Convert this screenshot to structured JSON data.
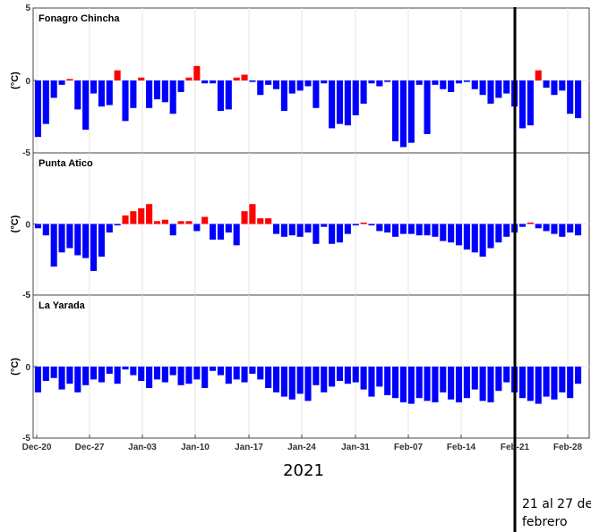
{
  "chart_data": [
    {
      "type": "bar",
      "title": "Fonagro Chincha",
      "ylabel": "(°C)",
      "ylim": [
        -5,
        5
      ],
      "y_ticks": [
        "5",
        "0",
        "-5"
      ],
      "values": [
        -3.9,
        -3.0,
        -1.2,
        -0.3,
        0.1,
        -2.0,
        -3.4,
        -0.9,
        -1.8,
        -1.7,
        0.7,
        -2.8,
        -1.9,
        0.2,
        -1.9,
        -1.3,
        -1.5,
        -2.3,
        -0.8,
        0.2,
        1.0,
        -0.2,
        -0.2,
        -2.1,
        -2.0,
        0.2,
        0.4,
        -0.1,
        -1.0,
        -0.3,
        -0.6,
        -2.1,
        -0.9,
        -0.7,
        -0.4,
        -1.9,
        -0.2,
        -3.3,
        -3.0,
        -3.1,
        -2.4,
        -1.6,
        -0.2,
        -0.4,
        -0.1,
        -4.2,
        -4.6,
        -4.3,
        -0.3,
        -3.7,
        -0.3,
        -0.6,
        -0.8,
        -0.2,
        -0.1,
        -0.6,
        -1.0,
        -1.6,
        -1.2,
        -0.9,
        -1.8,
        -3.3,
        -3.1,
        0.7,
        -0.5,
        -1.0,
        -0.7,
        -2.3,
        -2.6
      ],
      "colors": {
        "positive": "#ff0000",
        "negative": "#0000ff"
      }
    },
    {
      "type": "bar",
      "title": "Punta Atico",
      "ylabel": "(°C)",
      "ylim": [
        -5,
        5
      ],
      "y_ticks": [
        "0",
        "-5"
      ],
      "values": [
        -0.3,
        -0.8,
        -3.0,
        -2.0,
        -1.7,
        -2.2,
        -2.4,
        -3.3,
        -2.3,
        -0.6,
        -0.1,
        0.6,
        0.9,
        1.1,
        1.4,
        0.2,
        0.3,
        -0.8,
        0.2,
        0.2,
        -0.5,
        0.5,
        -1.1,
        -1.1,
        -0.6,
        -1.5,
        0.9,
        1.4,
        0.4,
        0.4,
        -0.7,
        -0.9,
        -0.8,
        -0.9,
        -0.6,
        -1.4,
        -0.2,
        -1.4,
        -1.3,
        -0.7,
        -0.1,
        0.1,
        -0.1,
        -0.5,
        -0.6,
        -0.9,
        -0.7,
        -0.7,
        -0.8,
        -0.8,
        -0.9,
        -1.2,
        -1.3,
        -1.5,
        -1.8,
        -2.0,
        -2.3,
        -1.7,
        -1.3,
        -0.9,
        -0.6,
        -0.2,
        0.1,
        -0.3,
        -0.5,
        -0.7,
        -0.9,
        -0.6,
        -0.8
      ],
      "colors": {
        "positive": "#ff0000",
        "negative": "#0000ff"
      }
    },
    {
      "type": "bar",
      "title": "La Yarada",
      "ylabel": "(°C)",
      "ylim": [
        -5,
        5
      ],
      "y_ticks": [
        "5",
        "0",
        "-5"
      ],
      "x_tick_labels": [
        "Dec-20",
        "Dec-27",
        "Jan-03",
        "Jan-10",
        "Jan-17",
        "Jan-24",
        "Jan-31",
        "Feb-07",
        "Feb-14",
        "Feb-21",
        "Feb-28"
      ],
      "values": [
        -1.8,
        -1.0,
        -0.8,
        -1.6,
        -1.2,
        -1.8,
        -1.3,
        -0.9,
        -1.1,
        -0.5,
        -1.2,
        -0.2,
        -0.6,
        -1.0,
        -1.5,
        -0.9,
        -1.1,
        -0.6,
        -1.3,
        -1.2,
        -0.9,
        -1.5,
        -0.3,
        -0.6,
        -1.2,
        -0.9,
        -1.1,
        -0.5,
        -0.9,
        -1.5,
        -1.8,
        -2.1,
        -2.3,
        -1.9,
        -2.4,
        -1.3,
        -1.8,
        -1.4,
        -1.0,
        -1.2,
        -1.1,
        -1.6,
        -2.1,
        -1.4,
        -2.0,
        -2.2,
        -2.5,
        -2.6,
        -2.2,
        -2.4,
        -2.5,
        -1.8,
        -2.3,
        -2.5,
        -2.2,
        -1.6,
        -2.4,
        -2.5,
        -1.7,
        -1.1,
        -1.8,
        -2.2,
        -2.4,
        -2.6,
        -2.1,
        -2.3,
        -1.8,
        -2.2,
        -1.2
      ],
      "colors": {
        "positive": "#ff0000",
        "negative": "#0000ff"
      }
    }
  ],
  "annotations": {
    "year": "2021",
    "period_note_line1": "21 al 27 de",
    "period_note_line2": "febrero"
  }
}
